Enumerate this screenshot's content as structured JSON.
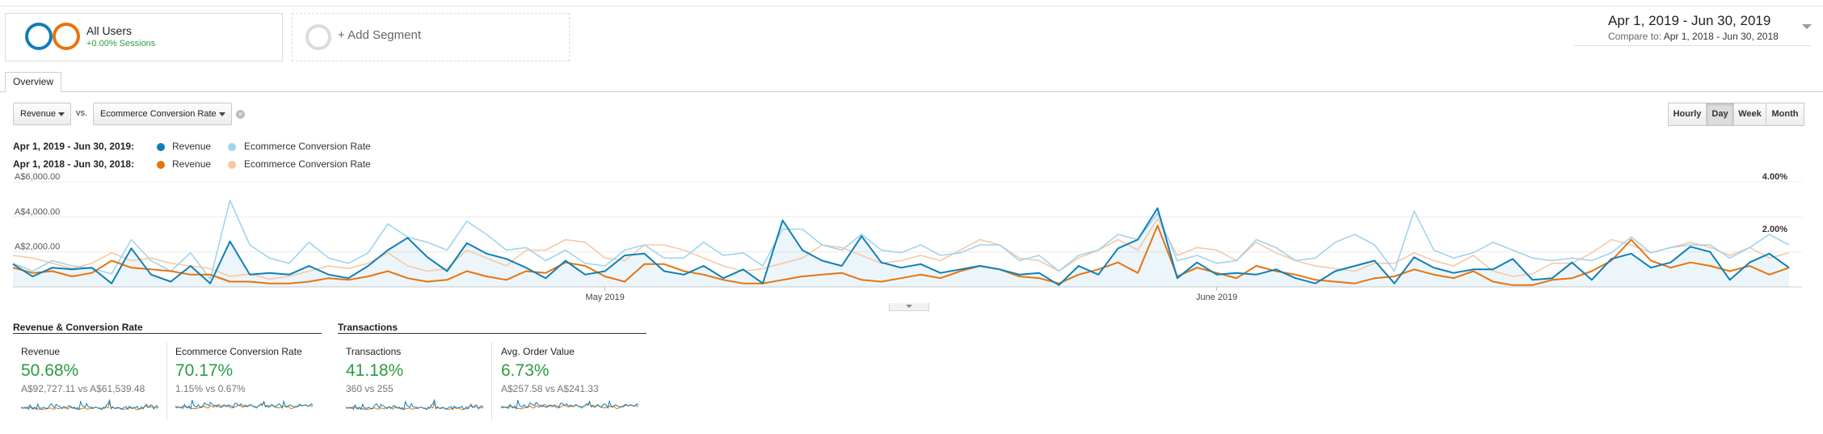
{
  "segments": {
    "all_users": {
      "title": "All Users",
      "subtitle": "+0.00% Sessions"
    },
    "add_segment": {
      "label": "+ Add Segment"
    }
  },
  "date_range": {
    "main": "Apr 1, 2019 - Jun 30, 2019",
    "compare_label": "Compare to:",
    "compare_value": "Apr 1, 2018 - Jun 30, 2018"
  },
  "tabs": [
    {
      "label": "Overview"
    }
  ],
  "metric_selectors": {
    "primary": "Revenue",
    "vs_label": "vs.",
    "secondary": "Ecommerce Conversion Rate",
    "clear_symbol": "×"
  },
  "granularity": [
    {
      "label": "Hourly",
      "active": false
    },
    {
      "label": "Day",
      "active": true
    },
    {
      "label": "Week",
      "active": false
    },
    {
      "label": "Month",
      "active": false
    }
  ],
  "legend": {
    "current": {
      "period": "Apr 1, 2019 - Jun 30, 2019:",
      "series_a": "Revenue",
      "series_b": "Ecommerce Conversion Rate"
    },
    "previous": {
      "period": "Apr 1, 2018 - Jun 30, 2018:",
      "series_a": "Revenue",
      "series_b": "Ecommerce Conversion Rate"
    }
  },
  "colors": {
    "revenue_current": "#0f7fb8",
    "conv_current": "#9fd4ee",
    "revenue_previous": "#e8730c",
    "conv_previous": "#f5c9a6",
    "positive": "#2a9c3e"
  },
  "chart_data": {
    "type": "line",
    "y_left_ticks": [
      "A$6,000.00",
      "A$4,000.00",
      "A$2,000.00"
    ],
    "y_left_range": [
      0,
      6000
    ],
    "y_right_ticks": [
      "4.00%",
      "2.00%"
    ],
    "y_right_range": [
      0,
      4.0
    ],
    "x_tick_labels": [
      {
        "label": "May 2019",
        "day_index": 30
      },
      {
        "label": "June 2019",
        "day_index": 61
      }
    ],
    "days": 91,
    "series": [
      {
        "name": "Revenue",
        "period": "current",
        "axis": "left",
        "values": [
          1300,
          600,
          1100,
          1000,
          1100,
          200,
          2200,
          700,
          300,
          1200,
          200,
          2600,
          700,
          800,
          700,
          1200,
          700,
          500,
          1200,
          2100,
          2800,
          1700,
          900,
          2500,
          1900,
          1600,
          1100,
          500,
          1500,
          700,
          900,
          1800,
          1900,
          900,
          700,
          1200,
          500,
          1000,
          200,
          3800,
          2100,
          1500,
          1200,
          2900,
          1400,
          1100,
          1300,
          800,
          1000,
          1200,
          1000,
          700,
          800,
          100,
          1200,
          700,
          2200,
          2700,
          4500,
          500,
          1400,
          700,
          800,
          700,
          1000,
          500,
          200,
          900,
          1200,
          1500,
          200,
          1700,
          1100,
          800,
          1000,
          1000,
          1600,
          400,
          500,
          1400,
          400,
          1600,
          1900,
          1100,
          1400,
          2300,
          2000,
          400,
          1400,
          1900,
          1100
        ]
      },
      {
        "name": "Revenue",
        "period": "previous",
        "axis": "left",
        "values": [
          1100,
          800,
          900,
          600,
          800,
          1500,
          1100,
          1000,
          900,
          700,
          700,
          300,
          300,
          200,
          200,
          300,
          500,
          400,
          600,
          900,
          500,
          300,
          400,
          900,
          600,
          400,
          900,
          800,
          1400,
          1200,
          600,
          300,
          1300,
          1300,
          900,
          700,
          400,
          200,
          200,
          400,
          600,
          700,
          800,
          400,
          300,
          500,
          700,
          500,
          900,
          1200,
          1000,
          600,
          500,
          200,
          700,
          1000,
          1400,
          800,
          3500,
          600,
          1100,
          800,
          500,
          1200,
          900,
          700,
          400,
          300,
          200,
          500,
          600,
          1000,
          700,
          500,
          900,
          300,
          100,
          100,
          400,
          500,
          900,
          1500,
          2700,
          1500,
          1100,
          1400,
          1200,
          900,
          1200,
          700,
          1100
        ]
      },
      {
        "name": "Ecommerce Conversion Rate",
        "period": "current",
        "axis": "right",
        "values": [
          0.9,
          0.6,
          1.0,
          0.8,
          0.7,
          0.5,
          1.8,
          1.0,
          0.6,
          1.3,
          0.3,
          3.3,
          1.6,
          1.1,
          0.9,
          1.7,
          1.1,
          0.9,
          1.3,
          2.4,
          1.9,
          1.7,
          1.4,
          2.5,
          2.0,
          1.4,
          1.5,
          1.0,
          1.4,
          0.9,
          0.8,
          1.4,
          1.6,
          1.1,
          1.1,
          1.7,
          1.2,
          1.3,
          0.8,
          2.2,
          2.2,
          1.6,
          1.4,
          2.0,
          1.4,
          1.3,
          1.6,
          1.2,
          1.3,
          1.6,
          1.6,
          1.0,
          1.2,
          0.6,
          1.2,
          1.4,
          2.0,
          1.8,
          2.8,
          1.0,
          1.2,
          0.9,
          1.0,
          1.8,
          1.5,
          1.0,
          1.1,
          1.7,
          2.0,
          1.6,
          0.6,
          2.9,
          1.4,
          1.1,
          1.3,
          1.7,
          1.4,
          1.1,
          1.0,
          1.1,
          1.0,
          1.3,
          1.9,
          1.3,
          1.5,
          1.6,
          1.6,
          1.1,
          1.5,
          2.0,
          1.6
        ]
      },
      {
        "name": "Ecommerce Conversion Rate",
        "period": "previous",
        "axis": "right",
        "values": [
          1.2,
          1.1,
          0.9,
          0.7,
          0.9,
          1.3,
          1.0,
          1.1,
          0.9,
          0.8,
          0.7,
          0.4,
          0.5,
          0.3,
          0.4,
          0.6,
          0.8,
          0.7,
          0.9,
          1.3,
          0.8,
          0.6,
          0.7,
          1.4,
          1.1,
          0.8,
          1.4,
          1.4,
          1.8,
          1.7,
          1.1,
          1.0,
          1.6,
          1.6,
          1.4,
          1.1,
          0.8,
          0.6,
          0.7,
          0.9,
          1.1,
          1.6,
          1.5,
          1.2,
          0.9,
          1.0,
          1.2,
          1.0,
          1.4,
          1.8,
          1.6,
          1.1,
          1.0,
          0.6,
          1.1,
          1.4,
          1.8,
          1.4,
          2.6,
          1.2,
          1.5,
          1.4,
          1.0,
          1.7,
          1.3,
          1.0,
          0.8,
          0.7,
          0.6,
          0.9,
          0.9,
          1.3,
          1.0,
          0.8,
          1.2,
          0.6,
          0.4,
          0.5,
          0.9,
          0.9,
          1.3,
          1.8,
          1.6,
          1.3,
          1.5,
          1.7,
          1.5,
          1.2,
          1.5,
          1.1,
          1.3
        ]
      }
    ],
    "grid": true,
    "area_fill_series": 0
  },
  "scorecard_groups": [
    {
      "title": "Revenue & Conversion Rate"
    },
    {
      "title": "Transactions"
    }
  ],
  "scorecards": [
    {
      "name": "Revenue",
      "change": "50.68%",
      "compare": "A$92,727.11 vs A$61,539.48"
    },
    {
      "name": "Ecommerce Conversion Rate",
      "change": "70.17%",
      "compare": "1.15% vs 0.67%"
    },
    {
      "name": "Transactions",
      "change": "41.18%",
      "compare": "360 vs 255"
    },
    {
      "name": "Avg. Order Value",
      "change": "6.73%",
      "compare": "A$257.58 vs A$241.33"
    }
  ]
}
